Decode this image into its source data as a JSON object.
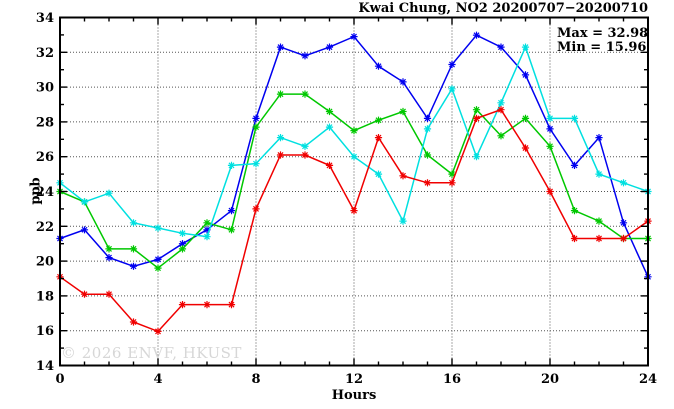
{
  "header": {
    "title": "Kwai Chung, NO2 20200707−20200710"
  },
  "annotations": {
    "max": "Max = 32.98",
    "min": "Min = 15.96"
  },
  "watermark": {
    "text": "© 2026 ENVF, HKUST",
    "color": "#d7d7d7"
  },
  "chart_data": {
    "type": "line",
    "title": "Kwai Chung, NO2 20200707−20200710",
    "xlabel": "Hours",
    "ylabel": "ppb",
    "xlim": [
      0,
      24
    ],
    "ylim": [
      14,
      34
    ],
    "xticks": [
      0,
      4,
      8,
      12,
      16,
      20,
      24
    ],
    "yticks": [
      14,
      16,
      18,
      20,
      22,
      24,
      26,
      28,
      30,
      32,
      34
    ],
    "x_minor_step": 1,
    "y_minor_step": 1,
    "grid": true,
    "legend": "none",
    "max_value": 32.98,
    "min_value": 15.96,
    "grid_color": "#555555",
    "x": [
      0,
      1,
      2,
      3,
      4,
      5,
      6,
      7,
      8,
      9,
      10,
      11,
      12,
      13,
      14,
      15,
      16,
      17,
      18,
      19,
      20,
      21,
      22,
      23,
      24
    ],
    "series": [
      {
        "name": "series-blue",
        "color": "#0000f0",
        "values": [
          21.3,
          21.8,
          20.2,
          19.7,
          20.1,
          21.0,
          21.8,
          22.9,
          28.2,
          32.3,
          31.8,
          32.3,
          32.9,
          31.2,
          30.3,
          28.2,
          31.3,
          32.98,
          32.3,
          30.7,
          27.6,
          25.5,
          27.1,
          22.2,
          19.1
        ]
      },
      {
        "name": "series-green",
        "color": "#00c800",
        "values": [
          24.0,
          23.4,
          20.7,
          20.7,
          19.6,
          20.7,
          22.2,
          21.8,
          27.7,
          29.6,
          29.6,
          28.6,
          27.5,
          28.1,
          28.6,
          26.1,
          25.0,
          28.7,
          27.2,
          28.2,
          26.6,
          22.9,
          22.3,
          21.3,
          21.3
        ]
      },
      {
        "name": "series-cyan",
        "color": "#00e0e0",
        "values": [
          24.5,
          23.4,
          23.9,
          22.2,
          21.9,
          21.6,
          21.4,
          25.5,
          25.6,
          27.1,
          26.6,
          27.7,
          26.0,
          25.0,
          22.3,
          27.6,
          29.9,
          26.0,
          29.1,
          32.3,
          28.2,
          28.2,
          25.0,
          24.5,
          24.0
        ]
      },
      {
        "name": "series-red",
        "color": "#f00000",
        "values": [
          19.1,
          18.1,
          18.1,
          16.5,
          15.96,
          17.5,
          17.5,
          17.5,
          23.0,
          26.1,
          26.1,
          25.5,
          22.9,
          27.1,
          24.9,
          24.5,
          24.5,
          28.2,
          28.7,
          26.5,
          24.0,
          21.3,
          21.3,
          21.3,
          22.3
        ]
      }
    ]
  }
}
